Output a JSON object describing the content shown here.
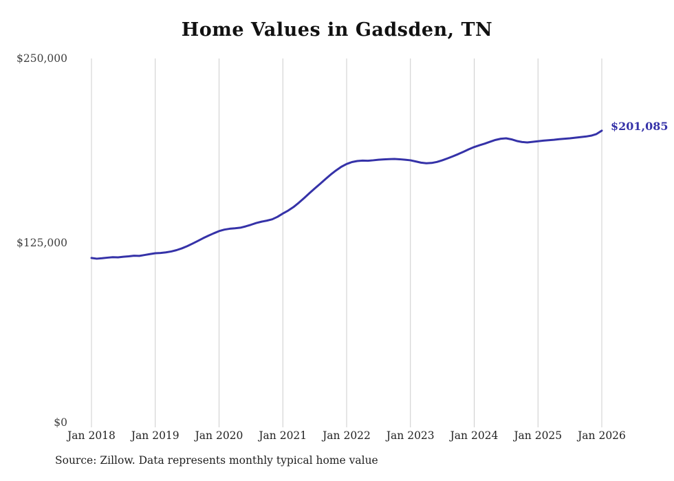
{
  "chart_data": {
    "type": "line",
    "title": "Home Values in Gadsden, TN",
    "ylabel": "",
    "xlabel": "",
    "ylim": [
      0,
      250000
    ],
    "grid": "vertical-only",
    "legend": "none",
    "line_color": "#3532a8",
    "end_label": "$201,085",
    "end_value": 201085,
    "y_ticks": [
      "$250,000",
      "$125,000",
      "$0"
    ],
    "x_ticks": [
      "Jan 2018",
      "Jan 2019",
      "Jan 2020",
      "Jan 2021",
      "Jan 2022",
      "Jan 2023",
      "Jan 2024",
      "Jan 2025",
      "Jan 2026"
    ],
    "x_unit": "monthly",
    "x_start": "Jan 2018",
    "x_end": "Jan 2026",
    "series_name": "Typical home value",
    "values": [
      114800,
      114300,
      114600,
      115000,
      115300,
      115200,
      115600,
      115900,
      116300,
      116200,
      116800,
      117400,
      118000,
      118200,
      118600,
      119200,
      120100,
      121300,
      122800,
      124500,
      126300,
      128200,
      129900,
      131500,
      133000,
      134000,
      134600,
      134900,
      135300,
      136200,
      137300,
      138500,
      139400,
      140100,
      141000,
      142700,
      144900,
      146900,
      149300,
      152200,
      155400,
      158700,
      161900,
      165000,
      168200,
      171300,
      174100,
      176600,
      178500,
      179800,
      180500,
      180800,
      180700,
      181000,
      181400,
      181600,
      181800,
      181900,
      181700,
      181400,
      181000,
      180200,
      179400,
      179000,
      179200,
      179900,
      181000,
      182300,
      183700,
      185200,
      186800,
      188500,
      190000,
      191200,
      192300,
      193600,
      194800,
      195600,
      195900,
      195200,
      194100,
      193400,
      193100,
      193500,
      193900,
      194300,
      194600,
      194900,
      195300,
      195600,
      195900,
      196300,
      196700,
      197100,
      197700,
      198800,
      201085
    ],
    "source": "Source: Zillow. Data represents monthly typical home value"
  }
}
